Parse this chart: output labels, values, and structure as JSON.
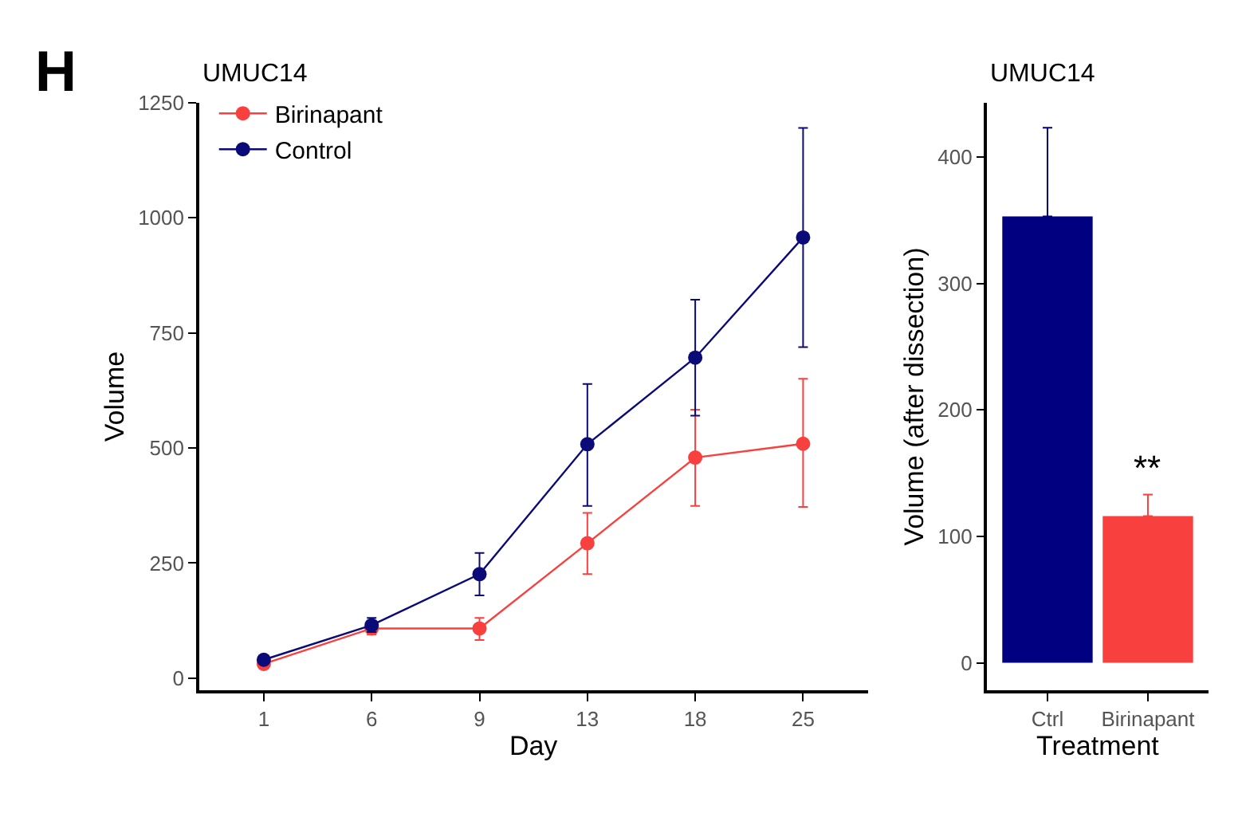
{
  "chart_data": [
    {
      "type": "line",
      "title": "UMUC14",
      "xlabel": "Day",
      "ylabel": "Volume",
      "annotations": [
        "H"
      ],
      "categories": [
        "1",
        "6",
        "9",
        "13",
        "18",
        "25"
      ],
      "ylim": [
        -27,
        1250
      ],
      "yticks": [
        0,
        250,
        500,
        750,
        1000,
        1250
      ],
      "legend": "top left",
      "marker": "circle",
      "line_style": "solid",
      "series": [
        {
          "name": "Birinapant",
          "color": "#f8403f",
          "values": [
            31,
            108,
            108,
            293,
            479,
            509
          ],
          "errors": [
            null,
            [
              95,
              120
            ],
            [
              83,
              131
            ],
            [
              226,
              359
            ],
            [
              374,
              583
            ],
            [
              372,
              650
            ]
          ]
        },
        {
          "name": "Control",
          "color": "#0a0a78",
          "values": [
            40,
            115,
            226,
            508,
            696,
            957
          ],
          "errors": [
            null,
            [
              100,
              131
            ],
            [
              180,
              272
            ],
            [
              374,
              639
            ],
            [
              570,
              822
            ],
            [
              719,
              1195
            ]
          ]
        }
      ]
    },
    {
      "type": "bar",
      "title": "UMUC14",
      "xlabel": "Treatment",
      "ylabel": "Volume (after dissection)",
      "categories": [
        "Ctrl",
        "Birinapant"
      ],
      "values": [
        353,
        116
      ],
      "colors": [
        "#000080",
        "#f8403f"
      ],
      "errors": [
        [
          353,
          423
        ],
        [
          116,
          133
        ]
      ],
      "ylim": [
        -22,
        443
      ],
      "yticks": [
        0,
        100,
        200,
        300,
        400
      ],
      "legend": false,
      "annotations": [
        "**"
      ]
    }
  ]
}
